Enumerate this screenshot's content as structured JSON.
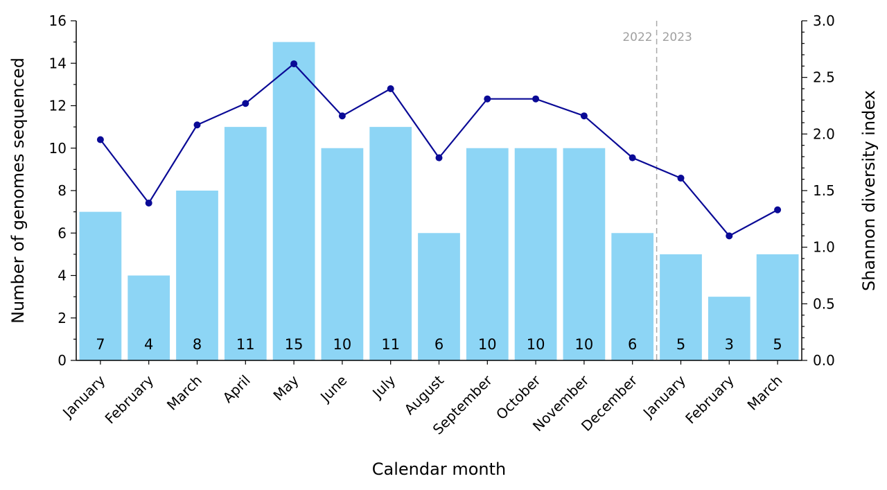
{
  "chart_data": {
    "type": "bar",
    "xlabel": "Calendar month",
    "ylabel": "Number of genomes sequenced",
    "y2label": "Shannon diversity index",
    "ylim": [
      0,
      16
    ],
    "y2lim": [
      0,
      3.0
    ],
    "yticks": [
      0,
      2,
      4,
      6,
      8,
      10,
      12,
      14,
      16
    ],
    "y2ticks": [
      "0.0",
      "0.5",
      "1.0",
      "1.5",
      "2.0",
      "2.5",
      "3.0"
    ],
    "categories": [
      "January",
      "February",
      "March",
      "April",
      "May",
      "June",
      "July",
      "August",
      "September",
      "October",
      "November",
      "December",
      "January",
      "February",
      "March"
    ],
    "series": [
      {
        "type": "bar",
        "axis": "left",
        "values": [
          7,
          4,
          8,
          11,
          15,
          10,
          11,
          6,
          10,
          10,
          10,
          6,
          5,
          3,
          5
        ],
        "color": "#8dd5f5"
      },
      {
        "type": "line",
        "axis": "right",
        "values": [
          1.95,
          1.39,
          2.08,
          2.27,
          2.62,
          2.16,
          2.4,
          1.79,
          2.31,
          2.31,
          2.16,
          1.79,
          1.61,
          1.1,
          1.33
        ],
        "color": "#0a0a96"
      }
    ],
    "year_divider": {
      "after_index": 11,
      "left_label": "2022",
      "right_label": "2023",
      "color": "#a9a9a9"
    },
    "grid": false,
    "bar_data_labels": true
  }
}
